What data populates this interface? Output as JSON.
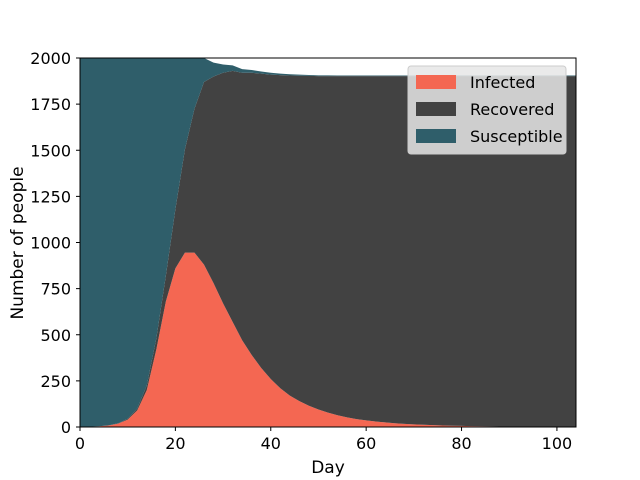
{
  "chart_data": {
    "type": "area",
    "stacked": true,
    "xlabel": "Day",
    "ylabel": "Number of people",
    "xlim": [
      0,
      104
    ],
    "ylim": [
      0,
      2000
    ],
    "xticks": [
      0,
      20,
      40,
      60,
      80,
      100
    ],
    "yticks": [
      0,
      250,
      500,
      750,
      1000,
      1250,
      1500,
      1750,
      2000
    ],
    "grid": false,
    "legend_position": "top-right",
    "x": [
      0,
      2,
      4,
      6,
      8,
      10,
      12,
      14,
      16,
      18,
      20,
      22,
      24,
      26,
      28,
      30,
      32,
      34,
      36,
      38,
      40,
      42,
      44,
      46,
      48,
      50,
      52,
      54,
      56,
      58,
      60,
      62,
      64,
      66,
      68,
      70,
      72,
      74,
      76,
      78,
      80,
      82,
      84,
      86,
      88,
      90,
      92,
      94,
      96,
      98,
      100,
      102,
      104
    ],
    "series": [
      {
        "name": "Infected",
        "color": "#F46752",
        "values": [
          1,
          2,
          4,
          8,
          18,
          40,
          90,
          200,
          420,
          680,
          860,
          945,
          945,
          880,
          780,
          670,
          570,
          470,
          390,
          320,
          260,
          210,
          170,
          140,
          115,
          95,
          78,
          64,
          52,
          43,
          36,
          30,
          25,
          20,
          17,
          14,
          12,
          10,
          8,
          7,
          6,
          5,
          4,
          3.5,
          3,
          2.5,
          2,
          1.8,
          1.5,
          1.2,
          1,
          1,
          1
        ]
      },
      {
        "name": "Recovered",
        "color": "#424242",
        "values": [
          0,
          0,
          0,
          1,
          2,
          5,
          10,
          25,
          60,
          140,
          320,
          560,
          780,
          990,
          1120,
          1250,
          1360,
          1450,
          1530,
          1595,
          1650,
          1697,
          1735,
          1764,
          1788,
          1807,
          1824,
          1838,
          1850,
          1859,
          1866,
          1872,
          1877,
          1882,
          1885,
          1888,
          1890,
          1892,
          1894,
          1895,
          1896,
          1897,
          1898,
          1898.5,
          1899,
          1899.5,
          1900,
          1900,
          1900.5,
          1900.8,
          1901,
          1901,
          1901
        ]
      },
      {
        "name": "Susceptible",
        "color": "#2F5E6A",
        "values": [
          1999,
          1998,
          1996,
          1991,
          1980,
          1955,
          1900,
          1775,
          1520,
          1180,
          820,
          495,
          275,
          130,
          75,
          45,
          30,
          20,
          15,
          12,
          10,
          8,
          7,
          6,
          5,
          4,
          4,
          3,
          3,
          3,
          3,
          3,
          3,
          3,
          3,
          3,
          3,
          3,
          3,
          3,
          3,
          3,
          3,
          3,
          3,
          3,
          3,
          3,
          3,
          3,
          3,
          3,
          3
        ]
      }
    ]
  }
}
